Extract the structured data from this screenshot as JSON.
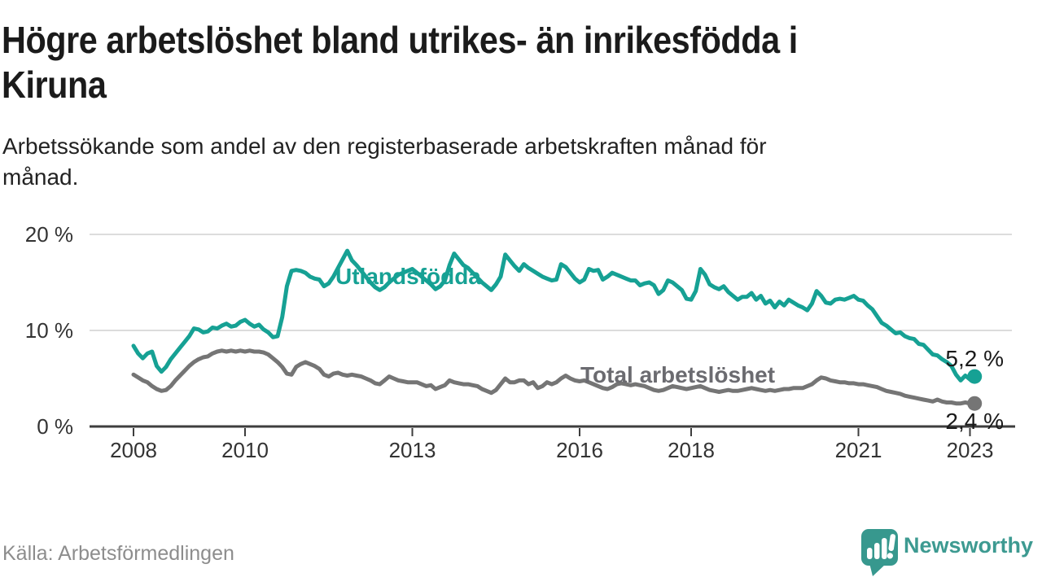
{
  "header": {
    "title": "Högre arbetslöshet bland utrikes- än inrikesfödda i Kiruna",
    "title_lines": [
      "Högre arbetslöshet bland utrikes- än inrikesfödda i",
      "Kiruna"
    ],
    "subtitle_lines": [
      "Arbetssökande som andel av den registerbaserade arbetskraften månad för",
      "månad."
    ]
  },
  "chart_data": {
    "type": "line",
    "title": "Högre arbetslöshet bland utrikes- än inrikesfödda i Kiruna",
    "subtitle": "Arbetssökande som andel av den registerbaserade arbetskraften månad för månad.",
    "x_unit": "month",
    "x_start_year": 2008,
    "xlim": [
      2007.25,
      2023.8
    ],
    "ylim": [
      0,
      20
    ],
    "grid": "horizontal",
    "legend_position": "inline-labels",
    "xticks": [
      2008,
      2010,
      2013,
      2016,
      2018,
      2021,
      2023
    ],
    "xtick_labels": [
      "2008",
      "2010",
      "2013",
      "2016",
      "2018",
      "2021",
      "2023"
    ],
    "yticks": [
      {
        "value": 0,
        "label": "0 %"
      },
      {
        "value": 10,
        "label": "10 %"
      },
      {
        "value": 20,
        "label": "20 %"
      }
    ],
    "series": [
      {
        "name": "Utlandsfödda",
        "color": "#16a194",
        "end_label": "5,2 %",
        "end_value": 5.2,
        "values": [
          8.4,
          7.6,
          7.1,
          7.6,
          7.8,
          6.3,
          5.7,
          6.2,
          7.0,
          7.6,
          8.2,
          8.8,
          9.4,
          10.2,
          10.1,
          9.8,
          9.9,
          10.3,
          10.2,
          10.5,
          10.7,
          10.4,
          10.5,
          10.9,
          11.1,
          10.7,
          10.4,
          10.6,
          10.1,
          9.8,
          9.3,
          9.4,
          11.4,
          14.6,
          16.2,
          16.3,
          16.2,
          16.0,
          15.6,
          15.4,
          15.3,
          14.6,
          14.9,
          15.6,
          16.5,
          17.4,
          18.3,
          17.3,
          16.8,
          16.2,
          15.6,
          15.0,
          14.5,
          14.2,
          14.5,
          15.0,
          15.4,
          15.8,
          16.0,
          16.2,
          16.4,
          16.0,
          15.6,
          15.2,
          14.8,
          14.3,
          14.6,
          15.2,
          16.8,
          18.0,
          17.4,
          16.8,
          16.5,
          16.0,
          15.5,
          15.0,
          14.6,
          14.2,
          14.8,
          15.6,
          17.9,
          17.3,
          16.7,
          16.2,
          16.9,
          16.5,
          16.2,
          15.9,
          15.6,
          15.4,
          15.2,
          15.3,
          16.9,
          16.6,
          16.0,
          15.4,
          15.0,
          15.3,
          16.4,
          16.2,
          16.3,
          15.3,
          15.6,
          16.0,
          15.8,
          15.6,
          15.4,
          15.2,
          15.2,
          14.7,
          14.9,
          15.0,
          14.7,
          13.8,
          14.2,
          15.2,
          15.0,
          14.6,
          14.2,
          13.3,
          13.2,
          14.1,
          16.4,
          15.8,
          14.8,
          14.5,
          14.3,
          14.6,
          14.0,
          13.6,
          13.2,
          13.5,
          13.5,
          13.9,
          13.2,
          13.6,
          12.8,
          13.1,
          12.4,
          13.0,
          12.6,
          13.2,
          12.9,
          12.6,
          12.4,
          12.1,
          12.8,
          14.1,
          13.6,
          12.9,
          12.8,
          13.2,
          13.3,
          13.2,
          13.4,
          13.6,
          13.2,
          13.1,
          12.6,
          12.2,
          11.5,
          10.8,
          10.5,
          10.1,
          9.7,
          9.8,
          9.4,
          9.2,
          9.1,
          8.6,
          8.5,
          8.0,
          7.5,
          7.4,
          7.0,
          6.7,
          6.3,
          5.4,
          4.8,
          5.3,
          4.9,
          5.2
        ]
      },
      {
        "name": "Total arbetslöshet",
        "color": "#757575",
        "end_label": "2,4 %",
        "end_value": 2.4,
        "values": [
          5.4,
          5.1,
          4.8,
          4.6,
          4.2,
          3.9,
          3.7,
          3.8,
          4.2,
          4.8,
          5.3,
          5.8,
          6.3,
          6.7,
          7.0,
          7.2,
          7.3,
          7.6,
          7.8,
          7.9,
          7.8,
          7.9,
          7.8,
          7.9,
          7.8,
          7.9,
          7.8,
          7.8,
          7.7,
          7.5,
          7.1,
          6.7,
          6.2,
          5.5,
          5.4,
          6.2,
          6.5,
          6.7,
          6.5,
          6.3,
          6.0,
          5.4,
          5.2,
          5.5,
          5.6,
          5.4,
          5.3,
          5.4,
          5.3,
          5.2,
          5.0,
          4.8,
          4.5,
          4.4,
          4.8,
          5.2,
          5.0,
          4.8,
          4.7,
          4.6,
          4.6,
          4.6,
          4.4,
          4.2,
          4.3,
          3.9,
          4.1,
          4.3,
          4.8,
          4.6,
          4.5,
          4.4,
          4.4,
          4.3,
          4.2,
          3.9,
          3.7,
          3.5,
          3.8,
          4.4,
          5.0,
          4.6,
          4.6,
          4.8,
          4.8,
          4.4,
          4.6,
          4.0,
          4.2,
          4.6,
          4.4,
          4.6,
          5.0,
          5.3,
          5.0,
          4.8,
          4.7,
          4.8,
          4.6,
          4.4,
          4.2,
          4.0,
          3.9,
          4.1,
          4.4,
          4.5,
          4.4,
          4.3,
          4.4,
          4.3,
          4.2,
          4.0,
          3.8,
          3.7,
          3.8,
          4.0,
          4.2,
          4.1,
          4.0,
          3.9,
          4.0,
          4.1,
          4.2,
          4.0,
          3.8,
          3.7,
          3.6,
          3.7,
          3.8,
          3.7,
          3.7,
          3.8,
          3.9,
          4.0,
          3.9,
          3.8,
          3.7,
          3.8,
          3.7,
          3.8,
          3.9,
          3.9,
          4.0,
          4.0,
          4.0,
          4.2,
          4.4,
          4.8,
          5.1,
          5.0,
          4.8,
          4.7,
          4.6,
          4.6,
          4.5,
          4.5,
          4.4,
          4.4,
          4.3,
          4.2,
          4.1,
          3.9,
          3.7,
          3.6,
          3.5,
          3.4,
          3.2,
          3.1,
          3.0,
          2.9,
          2.8,
          2.7,
          2.6,
          2.8,
          2.6,
          2.5,
          2.5,
          2.4,
          2.4,
          2.5,
          2.4,
          2.4
        ]
      }
    ]
  },
  "footer": {
    "source": "Källa: Arbetsförmedlingen",
    "brand": "Newsworthy"
  },
  "colors": {
    "foreign_born_line": "#16a194",
    "total_line": "#757575",
    "gridline": "#dcdcdc",
    "axis": "#3d3d3d",
    "axis_text": "#333333",
    "end_label_text": "#1a1a1a",
    "total_label_text": "#6b6b70",
    "brand_teal": "#3d9a91",
    "logo_fill": "#37988e",
    "source_text": "#8d8d8d",
    "title_text": "#1b1b1b"
  }
}
